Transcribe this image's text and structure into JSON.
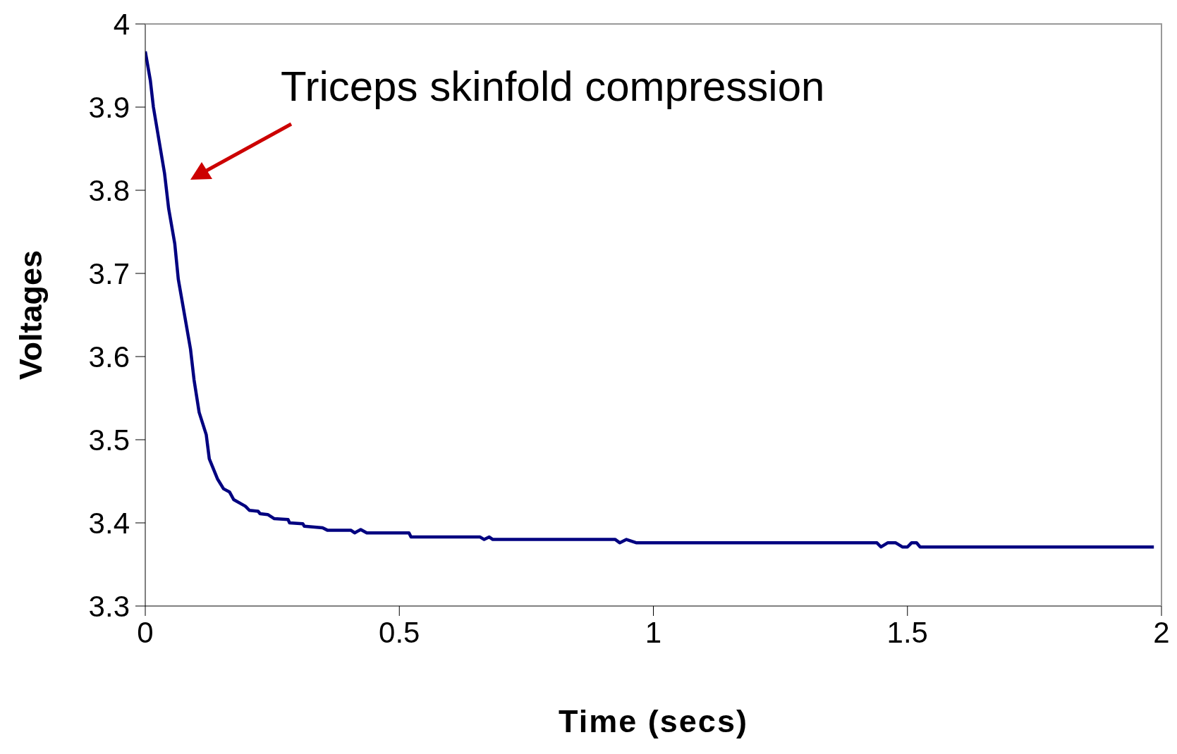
{
  "chart_data": {
    "type": "line",
    "xlabel": "Time (secs)",
    "ylabel": "Voltages",
    "annotations": [
      "Triceps skinfold compression"
    ],
    "x": [
      0,
      0.01,
      0.016,
      0.038,
      0.046,
      0.058,
      0.065,
      0.089,
      0.096,
      0.106,
      0.12,
      0.126,
      0.142,
      0.154,
      0.166,
      0.174,
      0.197,
      0.205,
      0.222,
      0.226,
      0.241,
      0.254,
      0.281,
      0.284,
      0.31,
      0.313,
      0.349,
      0.359,
      0.405,
      0.412,
      0.424,
      0.436,
      0.519,
      0.523,
      0.659,
      0.667,
      0.677,
      0.684,
      0.925,
      0.934,
      0.947,
      0.967,
      1.44,
      1.448,
      1.461,
      1.477,
      1.49,
      1.5,
      1.508,
      1.518,
      1.525,
      1.985
    ],
    "series": [
      {
        "color": "#000080",
        "values": [
          3.967,
          3.932,
          3.9,
          3.82,
          3.778,
          3.736,
          3.693,
          3.609,
          3.572,
          3.533,
          3.506,
          3.477,
          3.453,
          3.441,
          3.437,
          3.428,
          3.42,
          3.415,
          3.414,
          3.411,
          3.41,
          3.405,
          3.404,
          3.4,
          3.399,
          3.396,
          3.394,
          3.391,
          3.391,
          3.388,
          3.392,
          3.388,
          3.388,
          3.383,
          3.383,
          3.38,
          3.383,
          3.38,
          3.38,
          3.376,
          3.38,
          3.376,
          3.376,
          3.371,
          3.376,
          3.376,
          3.371,
          3.371,
          3.376,
          3.376,
          3.371,
          3.371
        ]
      }
    ],
    "xlim": [
      0,
      2
    ],
    "xticks": [
      0,
      0.5,
      1,
      1.5,
      2
    ],
    "ylim": [
      3.3,
      4
    ],
    "yticks": [
      3.3,
      3.4,
      3.5,
      3.6,
      3.7,
      3.8,
      3.9,
      4
    ],
    "grid": false,
    "legend": false,
    "marker": "none",
    "line_style": "solid"
  }
}
